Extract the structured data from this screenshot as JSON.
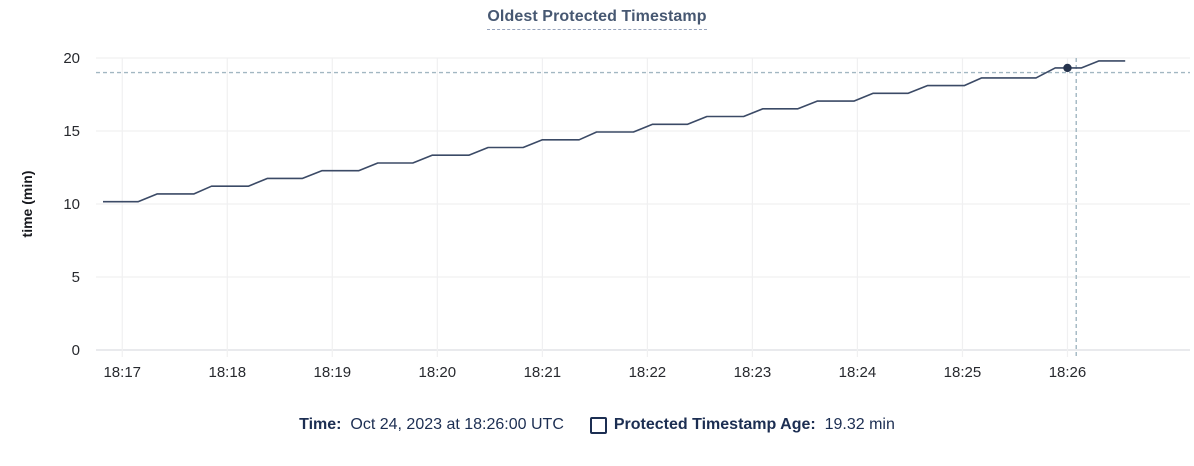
{
  "title": "Oldest Protected Timestamp",
  "colors": {
    "line": "#3b4a66",
    "dot": "#26334d",
    "crosshair": "#a2b7c2",
    "gridline": "#f0f0f1",
    "zero_axis": "#e2e4e7",
    "tick_text": "#27292e",
    "axis_title_text": "#17191e",
    "title_text": "#475872",
    "legend_text": "#1c2e52"
  },
  "tooltip": {
    "time_label": "Time:",
    "time_value": "Oct 24, 2023 at 18:26:00 UTC",
    "series_label": "Protected Timestamp Age:",
    "series_value": "19.32 min"
  },
  "chart_data": {
    "type": "line",
    "title": "Oldest Protected Timestamp",
    "xlabel": "",
    "ylabel": "time (min)",
    "ylim": [
      0,
      20
    ],
    "y_ticks": [
      0,
      5,
      10,
      15,
      20
    ],
    "x_range_sec": [
      -15,
      610
    ],
    "x_ticks": [
      {
        "label": "18:17",
        "sec": 0
      },
      {
        "label": "18:18",
        "sec": 60
      },
      {
        "label": "18:19",
        "sec": 120
      },
      {
        "label": "18:20",
        "sec": 180
      },
      {
        "label": "18:21",
        "sec": 240
      },
      {
        "label": "18:22",
        "sec": 300
      },
      {
        "label": "18:23",
        "sec": 360
      },
      {
        "label": "18:24",
        "sec": 420
      },
      {
        "label": "18:25",
        "sec": 480
      },
      {
        "label": "18:26",
        "sec": 540
      }
    ],
    "grid": true,
    "legend_position": "bottom",
    "series": [
      {
        "name": "Protected Timestamp Age",
        "unit": "min",
        "points": [
          {
            "sec": -11,
            "v": 10.16
          },
          {
            "sec": 9,
            "v": 10.16
          },
          {
            "sec": 20,
            "v": 10.69
          },
          {
            "sec": 41,
            "v": 10.69
          },
          {
            "sec": 51,
            "v": 11.22
          },
          {
            "sec": 72,
            "v": 11.22
          },
          {
            "sec": 83,
            "v": 11.75
          },
          {
            "sec": 103,
            "v": 11.75
          },
          {
            "sec": 114,
            "v": 12.28
          },
          {
            "sec": 135,
            "v": 12.28
          },
          {
            "sec": 146,
            "v": 12.81
          },
          {
            "sec": 166,
            "v": 12.81
          },
          {
            "sec": 177,
            "v": 13.34
          },
          {
            "sec": 198,
            "v": 13.34
          },
          {
            "sec": 209,
            "v": 13.87
          },
          {
            "sec": 229,
            "v": 13.87
          },
          {
            "sec": 240,
            "v": 14.4
          },
          {
            "sec": 261,
            "v": 14.4
          },
          {
            "sec": 271,
            "v": 14.93
          },
          {
            "sec": 292,
            "v": 14.93
          },
          {
            "sec": 303,
            "v": 15.46
          },
          {
            "sec": 323,
            "v": 15.46
          },
          {
            "sec": 334,
            "v": 15.99
          },
          {
            "sec": 355,
            "v": 15.99
          },
          {
            "sec": 366,
            "v": 16.52
          },
          {
            "sec": 386,
            "v": 16.52
          },
          {
            "sec": 397,
            "v": 17.05
          },
          {
            "sec": 418,
            "v": 17.05
          },
          {
            "sec": 429,
            "v": 17.58
          },
          {
            "sec": 449,
            "v": 17.58
          },
          {
            "sec": 460,
            "v": 18.11
          },
          {
            "sec": 481,
            "v": 18.11
          },
          {
            "sec": 491,
            "v": 18.64
          },
          {
            "sec": 522,
            "v": 18.64
          },
          {
            "sec": 533,
            "v": 19.32
          },
          {
            "sec": 548,
            "v": 19.32
          },
          {
            "sec": 558,
            "v": 19.8
          },
          {
            "sec": 573,
            "v": 19.8
          }
        ]
      }
    ],
    "hover": {
      "cursor_sec": 545,
      "cursor_value": 19.0,
      "snap_point": {
        "sec": 540,
        "v": 19.32,
        "label": "19.32 min",
        "time_label": "18:26:00"
      }
    }
  }
}
